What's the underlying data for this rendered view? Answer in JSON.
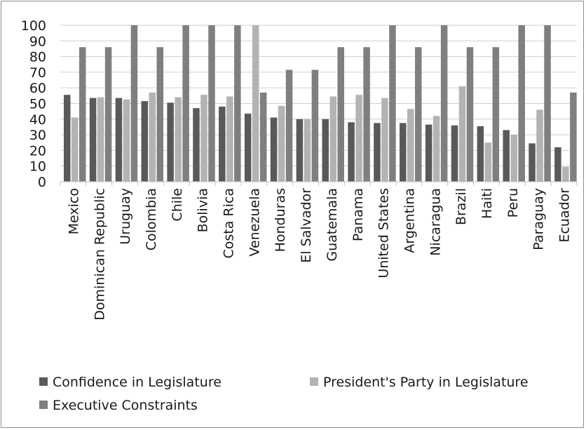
{
  "chart_data": {
    "type": "bar",
    "categories": [
      "Mexico",
      "Dominican Republic",
      "Uruguay",
      "Colombia",
      "Chile",
      "Bolivia",
      "Costa Rica",
      "Venezuela",
      "Honduras",
      "El Salvador",
      "Guatemala",
      "Panama",
      "United States",
      "Argentina",
      "Nicaragua",
      "Brazil",
      "Haiti",
      "Peru",
      "Paraguay",
      "Ecuador"
    ],
    "series": [
      {
        "name": "Confidence in Legislature",
        "color": "#595959",
        "values": [
          55.5,
          53.5,
          53.5,
          51.5,
          50.5,
          47,
          48,
          43.5,
          41,
          40,
          40,
          38,
          37.5,
          37.5,
          36.5,
          36,
          35.5,
          33,
          24.5,
          22
        ]
      },
      {
        "name": "President's Party in Legislature",
        "color": "#b3b3b3",
        "values": [
          41,
          54,
          52.5,
          57,
          54,
          55.5,
          54.5,
          100,
          48.5,
          40,
          54.5,
          55.5,
          53.5,
          46.5,
          42,
          61,
          25,
          30,
          46,
          9.5
        ]
      },
      {
        "name": "Executive Constraints",
        "color": "#7f7f7f",
        "values": [
          86,
          86,
          100,
          86,
          100,
          100,
          100,
          57,
          71.5,
          71.5,
          86,
          86,
          100,
          86,
          100,
          86,
          86,
          100,
          100,
          57
        ]
      }
    ],
    "ylim": [
      0,
      100
    ],
    "yticks": [
      0,
      10,
      20,
      30,
      40,
      50,
      60,
      70,
      80,
      90,
      100
    ],
    "grid": true,
    "legend_position": "bottom"
  }
}
